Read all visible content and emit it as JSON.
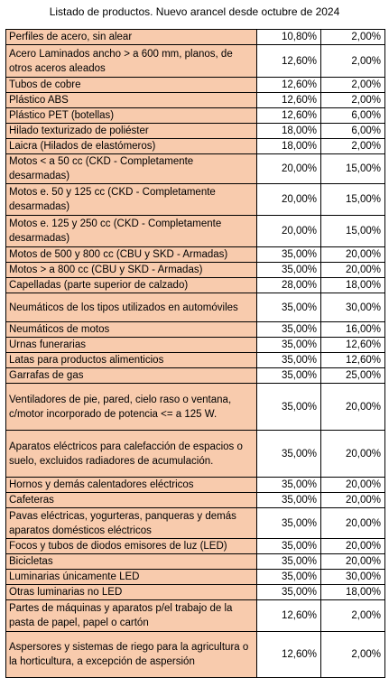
{
  "title": "Listado de productos. Nuevo arancel desde octubre de 2024",
  "colors": {
    "name_cell_background": "#f8cbad",
    "value_cell_background": "#ffffff",
    "border": "#000000"
  },
  "rows": [
    {
      "name": "Perfiles de acero, sin alear",
      "a": "10,80%",
      "b": "2,00%"
    },
    {
      "name": "Acero Laminados ancho > a 600 mm, planos, de otros aceros aleados",
      "a": "12,60%",
      "b": "2,00%"
    },
    {
      "name": "Tubos de cobre",
      "a": "12,60%",
      "b": "2,00%"
    },
    {
      "name": "Plástico ABS",
      "a": "12,60%",
      "b": "2,00%"
    },
    {
      "name": "Plástico PET (botellas)",
      "a": "12,60%",
      "b": "6,00%"
    },
    {
      "name": "Hilado texturizado de poliéster",
      "a": "18,00%",
      "b": "6,00%"
    },
    {
      "name": "Laicra (Hilados de elastómeros)",
      "a": "18,00%",
      "b": "2,00%"
    },
    {
      "name": "Motos < a 50 cc (CKD - Completamente desarmadas)",
      "a": "20,00%",
      "b": "15,00%"
    },
    {
      "name": "Motos e. 50 y 125 cc (CKD - Completamente desarmadas)",
      "a": "20,00%",
      "b": "15,00%"
    },
    {
      "name": "Motos e. 125 y 250 cc (CKD - Completamente desarmadas)",
      "a": "20,00%",
      "b": "15,00%"
    },
    {
      "name": "Motos de 500 y 800 cc (CBU y SKD - Armadas)",
      "a": "35,00%",
      "b": "20,00%"
    },
    {
      "name": "Motos > a 800 cc (CBU y SKD - Armadas)",
      "a": "35,00%",
      "b": "20,00%"
    },
    {
      "name": "Capelladas (parte superior de calzado)",
      "a": "28,00%",
      "b": "18,00%"
    },
    {
      "name": "Neumáticos de los tipos utilizados en automóviles",
      "a": "35,00%",
      "b": "30,00%"
    },
    {
      "name": "Neumáticos de motos",
      "a": "35,00%",
      "b": "16,00%"
    },
    {
      "name": "Urnas funerarias",
      "a": "35,00%",
      "b": "12,60%"
    },
    {
      "name": "Latas para productos alimenticios",
      "a": "35,00%",
      "b": "12,60%"
    },
    {
      "name": "Garrafas de gas",
      "a": "35,00%",
      "b": "25,00%"
    },
    {
      "name": "Ventiladores de pie, pared, cielo raso o ventana, c/motor incorporado de potencia <= a 125 W.",
      "a": "35,00%",
      "b": "20,00%"
    },
    {
      "name": "Aparatos eléctricos para calefacción de espacios o suelo, excluidos radiadores de acumulación.",
      "a": "35,00%",
      "b": "20,00%"
    },
    {
      "name": "Hornos y demás calentadores eléctricos",
      "a": "35,00%",
      "b": "20,00%"
    },
    {
      "name": "Cafeteras",
      "a": "35,00%",
      "b": "20,00%"
    },
    {
      "name": "Pavas eléctricas, yogurteras, panqueras y demás aparatos domésticos eléctricos",
      "a": "35,00%",
      "b": "20,00%"
    },
    {
      "name": "Focos y tubos de diodos emisores de luz (LED)",
      "a": "35,00%",
      "b": "20,00%"
    },
    {
      "name": "Bicicletas",
      "a": "35,00%",
      "b": "20,00%"
    },
    {
      "name": "Luminarias únicamente LED",
      "a": "35,00%",
      "b": "30,00%"
    },
    {
      "name": "Otras luminarias no LED",
      "a": "35,00%",
      "b": "18,00%"
    },
    {
      "name": "Partes de máquinas y aparatos p/el trabajo de la pasta de papel, papel o cartón",
      "a": "12,60%",
      "b": "2,00%"
    },
    {
      "name": "Aspersores y sistemas de riego para la agricultura o la horticultura, a excepción de aspersión",
      "a": "12,60%",
      "b": "2,00%"
    }
  ]
}
